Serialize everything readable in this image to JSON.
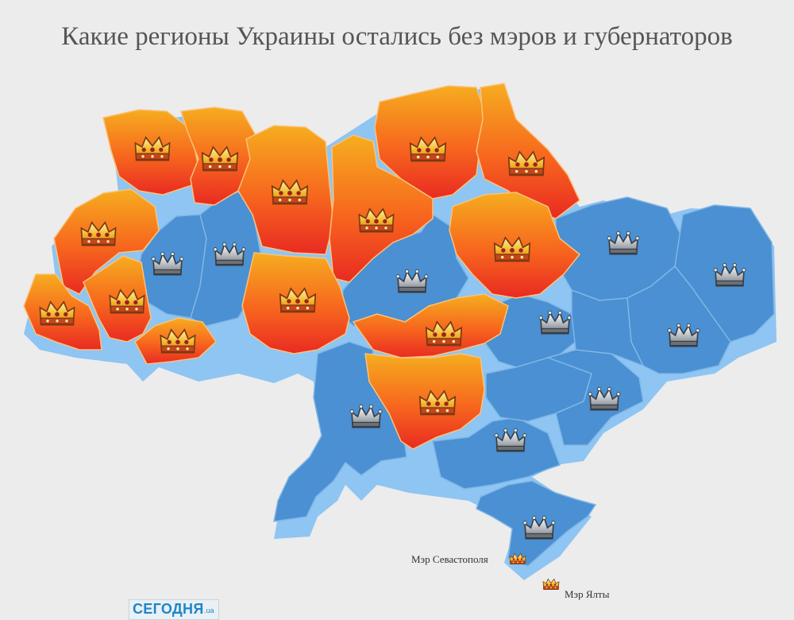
{
  "title": "Какие регионы Украины остались без мэров и губернаторов",
  "legend_colors": {
    "without_head": [
      "#f6ad1f",
      "#f7661e",
      "#e92a22"
    ],
    "with_head": "#4a90d2"
  },
  "icons": {
    "without_head": "golden-crown-icon",
    "with_head": "silver-crown-icon"
  },
  "callouts": {
    "sevastopol": "Мэр Севастополя",
    "yalta": "Мэр Ялты"
  },
  "logo": {
    "name": "СЕГОДНЯ",
    "suffix": ".ua"
  }
}
